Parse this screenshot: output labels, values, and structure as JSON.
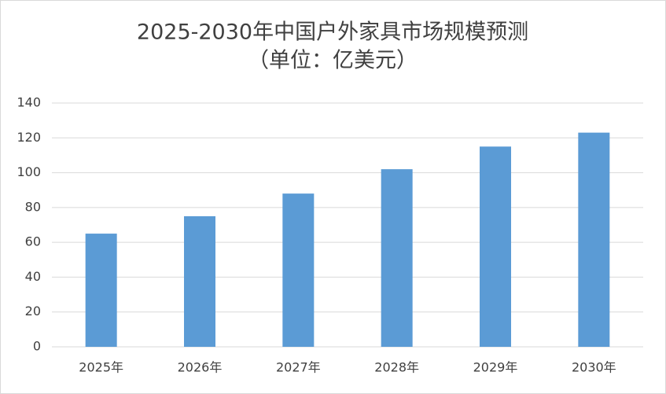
{
  "chart_data": {
    "type": "bar",
    "title": "2025-2030年中国户外家具市场规模预测",
    "subtitle": "（单位：亿美元）",
    "categories": [
      "2025年",
      "2026年",
      "2027年",
      "2028年",
      "2029年",
      "2030年"
    ],
    "values": [
      65,
      75,
      88,
      102,
      115,
      123
    ],
    "color": "#5b9bd5",
    "ylim": [
      0,
      140
    ],
    "yticks": [
      0,
      20,
      40,
      60,
      80,
      100,
      120,
      140
    ],
    "grid": true
  }
}
